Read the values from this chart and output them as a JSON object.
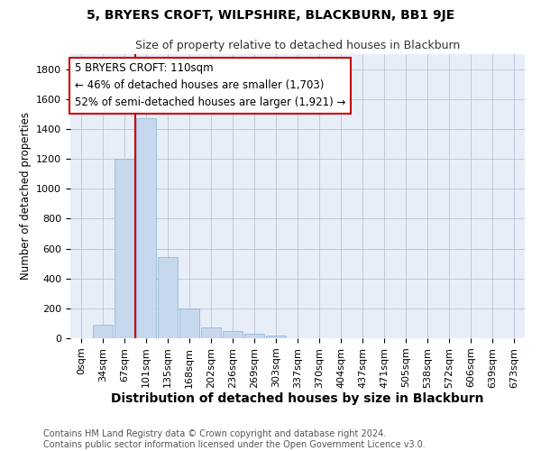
{
  "title": "5, BRYERS CROFT, WILPSHIRE, BLACKBURN, BB1 9JE",
  "subtitle": "Size of property relative to detached houses in Blackburn",
  "xlabel": "Distribution of detached houses by size in Blackburn",
  "ylabel": "Number of detached properties",
  "bar_color": "#c5d8ee",
  "bar_edge_color": "#8ab0d0",
  "background_color": "#e8eef8",
  "grid_color": "#b0b8cc",
  "categories": [
    "0sqm",
    "34sqm",
    "67sqm",
    "101sqm",
    "135sqm",
    "168sqm",
    "202sqm",
    "236sqm",
    "269sqm",
    "303sqm",
    "337sqm",
    "370sqm",
    "404sqm",
    "437sqm",
    "471sqm",
    "505sqm",
    "538sqm",
    "572sqm",
    "606sqm",
    "639sqm",
    "673sqm"
  ],
  "bar_heights": [
    0,
    90,
    1200,
    1470,
    540,
    200,
    70,
    50,
    32,
    20,
    0,
    0,
    0,
    0,
    0,
    0,
    0,
    0,
    0,
    0,
    0
  ],
  "ylim": [
    0,
    1900
  ],
  "yticks": [
    0,
    200,
    400,
    600,
    800,
    1000,
    1200,
    1400,
    1600,
    1800
  ],
  "property_line_x": 3.0,
  "annotation_text": "5 BRYERS CROFT: 110sqm\n← 46% of detached houses are smaller (1,703)\n52% of semi-detached houses are larger (1,921) →",
  "annotation_box_color": "#ffffff",
  "annotation_box_edge": "#cc0000",
  "property_line_color": "#cc0000",
  "footer_text": "Contains HM Land Registry data © Crown copyright and database right 2024.\nContains public sector information licensed under the Open Government Licence v3.0.",
  "title_fontsize": 10,
  "subtitle_fontsize": 9,
  "xlabel_fontsize": 10,
  "ylabel_fontsize": 8.5,
  "tick_fontsize": 8,
  "footer_fontsize": 7,
  "annotation_fontsize": 8.5
}
